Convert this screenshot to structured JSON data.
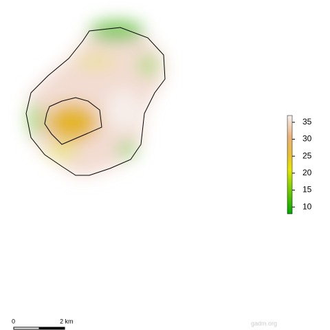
{
  "legend": {
    "lim": [
      8,
      37
    ],
    "ticks": [
      10,
      15,
      20,
      25,
      30,
      35
    ]
  },
  "scale_bar": {
    "start_label": "0",
    "end_label": "2 km"
  },
  "attribution": "gadm.org"
}
